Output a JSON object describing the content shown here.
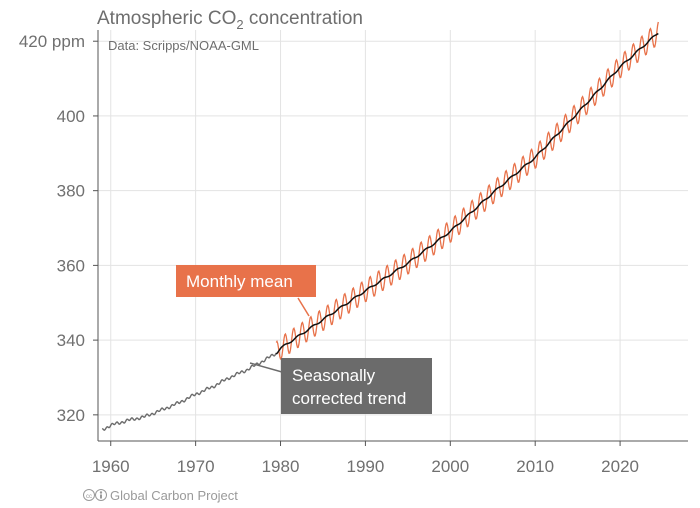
{
  "chart_data": {
    "type": "line",
    "title": "Atmospheric CO",
    "title_subscript": "2",
    "title_suffix": " concentration",
    "subtitle": "Data: Scripps/NOAA-GML",
    "ylabel_unit": "ppm",
    "xlim": [
      1958.5,
      2028
    ],
    "ylim": [
      313,
      423
    ],
    "x_ticks": [
      1960,
      1970,
      1980,
      1990,
      2000,
      2010,
      2020
    ],
    "x_tick_labels": [
      "1960",
      "1970",
      "1980",
      "1990",
      "2000",
      "2010",
      "2020"
    ],
    "y_ticks": [
      320,
      340,
      360,
      380,
      400,
      420
    ],
    "y_tick_labels": [
      "320",
      "340",
      "360",
      "380",
      "400",
      "420 ppm"
    ],
    "grid": true,
    "series": [
      {
        "name": "Seasonally corrected trend",
        "color": "#6b6b6b",
        "x": [
          1959,
          1960,
          1962,
          1964,
          1966,
          1968,
          1970,
          1972,
          1974,
          1976,
          1978,
          1979.5
        ],
        "y": [
          316,
          317.2,
          318.5,
          319.5,
          321.3,
          323.2,
          325.5,
          327.5,
          330,
          332,
          334.5,
          336.5
        ]
      },
      {
        "name": "Seasonally corrected trend",
        "color": "#111111",
        "x": [
          1979.5,
          1980,
          1985,
          1990,
          1995,
          2000,
          2005,
          2010,
          2015,
          2020,
          2024.5
        ],
        "y": [
          336.5,
          337.8,
          345.5,
          353.2,
          360.6,
          369.1,
          379.4,
          388.9,
          400.8,
          413.1,
          422.3
        ]
      },
      {
        "name": "Monthly mean",
        "color": "#e8724a",
        "x_start": 1979.5,
        "x_end": 2024.5,
        "seasonal_amplitude_ppm": 3
      }
    ],
    "annotations": [
      {
        "text": "Monthly mean",
        "bg": "#e8724a",
        "target_x": 1985,
        "target_y": 345.5
      },
      {
        "text_lines": [
          "Seasonally",
          "corrected trend"
        ],
        "bg": "#6b6b6b",
        "target_x": 1976.5,
        "target_y": 332.5
      }
    ]
  },
  "footer": {
    "credit": "Global Carbon Project",
    "icon": "creative-commons-icon"
  }
}
